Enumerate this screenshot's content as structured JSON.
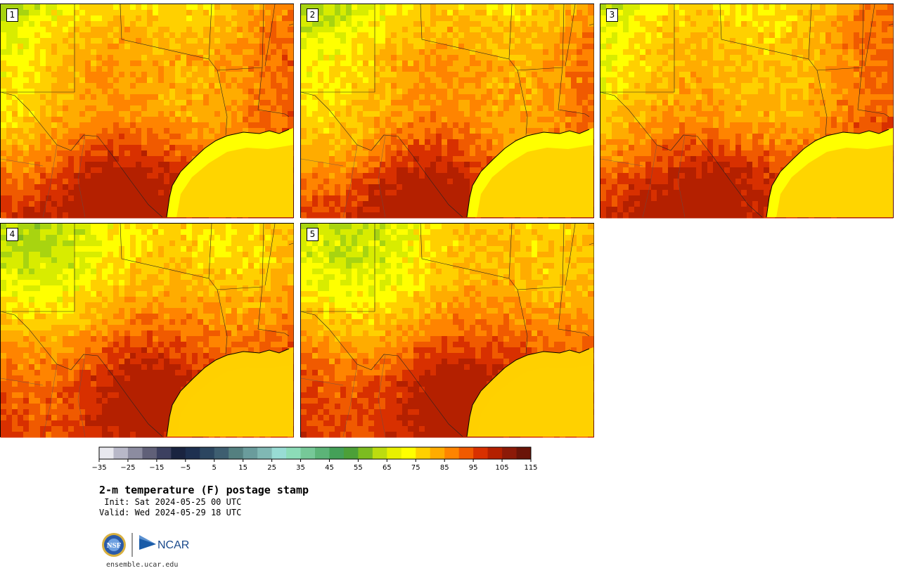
{
  "panels": [
    {
      "label": "1",
      "seed": 11,
      "warm_bias": 0.55
    },
    {
      "label": "2",
      "seed": 23,
      "warm_bias": 0.35
    },
    {
      "label": "3",
      "seed": 37,
      "warm_bias": 0.45
    },
    {
      "label": "4",
      "seed": 41,
      "warm_bias": 0.4
    },
    {
      "label": "5",
      "seed": 53,
      "warm_bias": 0.45
    }
  ],
  "colorbar": {
    "colors": [
      "#e8e8ee",
      "#b8b8c8",
      "#8c8ca0",
      "#606078",
      "#3c4060",
      "#1a2440",
      "#1e3050",
      "#2c4660",
      "#3e5e70",
      "#548080",
      "#6a9c9c",
      "#80b8b4",
      "#98dcd4",
      "#8cdcb8",
      "#76c898",
      "#5cb478",
      "#44a058",
      "#4ca038",
      "#7cbc20",
      "#bcdc10",
      "#e8f000",
      "#ffff00",
      "#ffd000",
      "#ffac00",
      "#ff8400",
      "#f05a00",
      "#d83000",
      "#b42000",
      "#8c1a08",
      "#6a1408"
    ],
    "ticks": [
      "−35",
      "−25",
      "−15",
      "−5",
      "5",
      "15",
      "25",
      "35",
      "45",
      "55",
      "65",
      "75",
      "85",
      "95",
      "105",
      "115"
    ]
  },
  "text": {
    "title": "2-m temperature (F) postage stamp",
    "init": " Init: Sat 2024-05-25 00 UTC",
    "valid": "Valid: Wed 2024-05-29 18 UTC",
    "url": "ensemble.ucar.edu"
  },
  "logos": {
    "nsf_text": "NSF",
    "ncar_text": "NCAR"
  }
}
